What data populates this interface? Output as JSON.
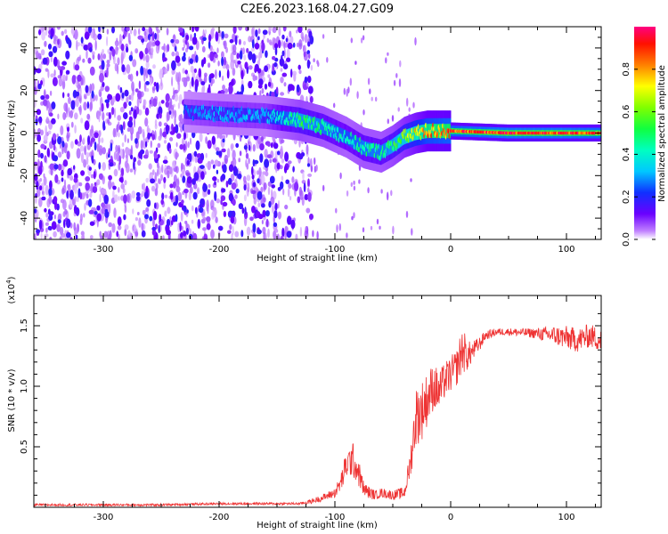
{
  "title": "C2E6.2023.168.04.27.G09",
  "colors": {
    "snr_line": "#ee3333",
    "spectrogram_low": "#d9b8f5",
    "spectrogram_mid": "#5a10e0",
    "spectrogram_high": "#ff2000"
  },
  "chart_data": [
    {
      "type": "heatmap",
      "title": "C2E6.2023.168.04.27.G09",
      "xlabel": "Height of straight line (km)",
      "ylabel": "Frequency (Hz)",
      "xlim": [
        -360,
        130
      ],
      "ylim": [
        -50,
        50
      ],
      "x_ticks": [
        -300,
        -200,
        -100,
        0,
        100
      ],
      "y_ticks": [
        -40,
        -20,
        0,
        20,
        40
      ],
      "colorbar": {
        "label": "Normalized spectral amplitude",
        "range": [
          0,
          1
        ],
        "ticks": [
          "0.0",
          "0.2",
          "0.4",
          "0.6",
          "0.8"
        ],
        "colormap": "rainbow (white-violet-blue-cyan-green-yellow-red-magenta)"
      },
      "ridge": {
        "x": [
          -230,
          -200,
          -160,
          -130,
          -110,
          -90,
          -75,
          -60,
          -50,
          -40,
          -30,
          -20,
          0,
          50,
          100,
          130
        ],
        "frequency": [
          10,
          9,
          8,
          6,
          3,
          -2,
          -7,
          -9,
          -6,
          -2,
          0,
          1,
          1,
          0,
          0,
          0
        ],
        "amplitude": [
          0.25,
          0.3,
          0.3,
          0.5,
          0.45,
          0.4,
          0.45,
          0.45,
          0.5,
          0.6,
          0.7,
          0.8,
          0.85,
          0.9,
          0.9,
          0.85
        ]
      },
      "noise_region": {
        "x_from": -360,
        "x_to": -130
      }
    },
    {
      "type": "line",
      "xlabel": "Height of straight line (km)",
      "ylabel": "SNR (10 * v/v)",
      "y_multiplier": "(x10^4)",
      "xlim": [
        -360,
        130
      ],
      "ylim": [
        0,
        1.75
      ],
      "x_ticks": [
        -300,
        -200,
        -100,
        0,
        100
      ],
      "y_ticks": [
        "0.5",
        "1.0",
        "1.5"
      ],
      "series": [
        {
          "x": [
            -360,
            -300,
            -250,
            -200,
            -150,
            -130,
            -120,
            -110,
            -100,
            -95,
            -90,
            -85,
            -80,
            -75,
            -70,
            -65,
            -60,
            -50,
            -40,
            -35,
            -30,
            -25,
            -20,
            -15,
            -10,
            -5,
            0,
            5,
            10,
            15,
            20,
            25,
            30,
            40,
            50,
            70,
            90,
            100,
            110,
            120,
            130
          ],
          "values": [
            0.02,
            0.02,
            0.02,
            0.03,
            0.03,
            0.03,
            0.05,
            0.08,
            0.12,
            0.2,
            0.35,
            0.4,
            0.3,
            0.15,
            0.12,
            0.1,
            0.12,
            0.1,
            0.12,
            0.35,
            0.75,
            0.8,
            0.9,
            1.0,
            0.95,
            1.05,
            1.1,
            1.15,
            1.3,
            1.25,
            1.3,
            1.35,
            1.42,
            1.45,
            1.45,
            1.44,
            1.42,
            1.4,
            1.38,
            1.42,
            1.38
          ],
          "noise": [
            0.01,
            0.01,
            0.01,
            0.01,
            0.01,
            0.01,
            0.02,
            0.03,
            0.04,
            0.08,
            0.12,
            0.15,
            0.12,
            0.06,
            0.05,
            0.04,
            0.04,
            0.04,
            0.05,
            0.12,
            0.25,
            0.25,
            0.22,
            0.2,
            0.18,
            0.15,
            0.15,
            0.15,
            0.2,
            0.12,
            0.08,
            0.06,
            0.04,
            0.03,
            0.03,
            0.04,
            0.08,
            0.1,
            0.1,
            0.1,
            0.1
          ]
        }
      ]
    }
  ]
}
